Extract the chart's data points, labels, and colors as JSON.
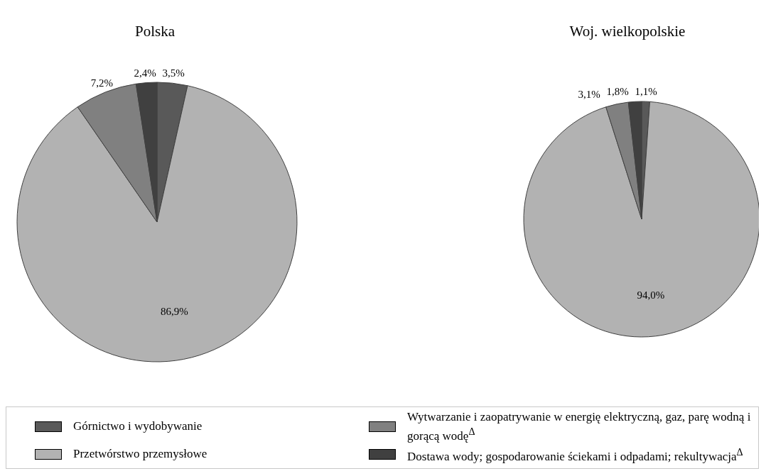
{
  "chart_data": [
    {
      "type": "pie",
      "title": "Polska",
      "categories": [
        "Górnictwo i wydobywanie",
        "Przetwórstwo przemysłowe",
        "Wytwarzanie i zaopatrywanie w energię elektryczną, gaz, parę wodną i gorącą wodę$^{Δ}$",
        "Dostawa wody; gospodarowanie ściekami i odpadami; rekultywacja$^{Δ}$"
      ],
      "values": [
        3.5,
        86.9,
        7.2,
        2.4
      ],
      "value_labels": [
        "3,5%",
        "86,9%",
        "7,2%",
        "2,4%"
      ],
      "colors": [
        "#595959",
        "#b2b2b2",
        "#808080",
        "#404040"
      ],
      "legend": "bottom"
    },
    {
      "type": "pie",
      "title": "Woj. wielkopolskie",
      "categories": [
        null,
        null,
        null,
        null
      ],
      "values": [
        1.1,
        94.0,
        3.1,
        1.8
      ],
      "value_labels": [
        "1,1%",
        "94,0%",
        "3,1%",
        "1,8%"
      ],
      "colors": [
        "#595959",
        "#b2b2b2",
        "#808080",
        "#404040"
      ]
    }
  ]
}
